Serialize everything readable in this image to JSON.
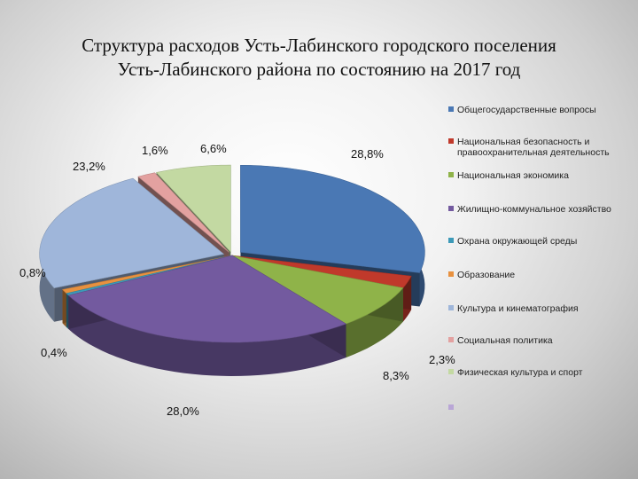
{
  "title_line1": "Структура расходов Усть-Лабинского городского поселения",
  "title_line2": "Усть-Лабинского района по состоянию  на 2017 год",
  "chart_data": {
    "type": "pie",
    "title": "Структура расходов Усть-Лабинского городского поселения Усть-Лабинского района по состоянию  на 2017 год",
    "legend_position": "right",
    "categories": [
      "Общегосударственные вопросы",
      "Национальная   безопасность и правоохранительная деятельность",
      "Национальная  экономика",
      "Жилищно-коммунальное хозяйство",
      "Охрана окружающей среды",
      "Образование",
      "Культура и кинематография",
      "Социальная политика",
      "Физическая культура и спорт",
      ""
    ],
    "values": [
      28.8,
      2.3,
      8.3,
      28.0,
      0.4,
      0.8,
      23.2,
      1.6,
      6.6,
      0
    ],
    "value_labels": [
      "28,8%",
      "2,3%",
      "8,3%",
      "28,0%",
      "0,4%",
      "0,8%",
      "23,2%",
      "1,6%",
      "6,6%",
      ""
    ],
    "colors": [
      "#4a78b4",
      "#c0392b",
      "#8fb349",
      "#735a9f",
      "#3d9ab8",
      "#e8913f",
      "#9fb6da",
      "#e3a1a0",
      "#c3d9a2",
      "#b9a6d6"
    ]
  }
}
